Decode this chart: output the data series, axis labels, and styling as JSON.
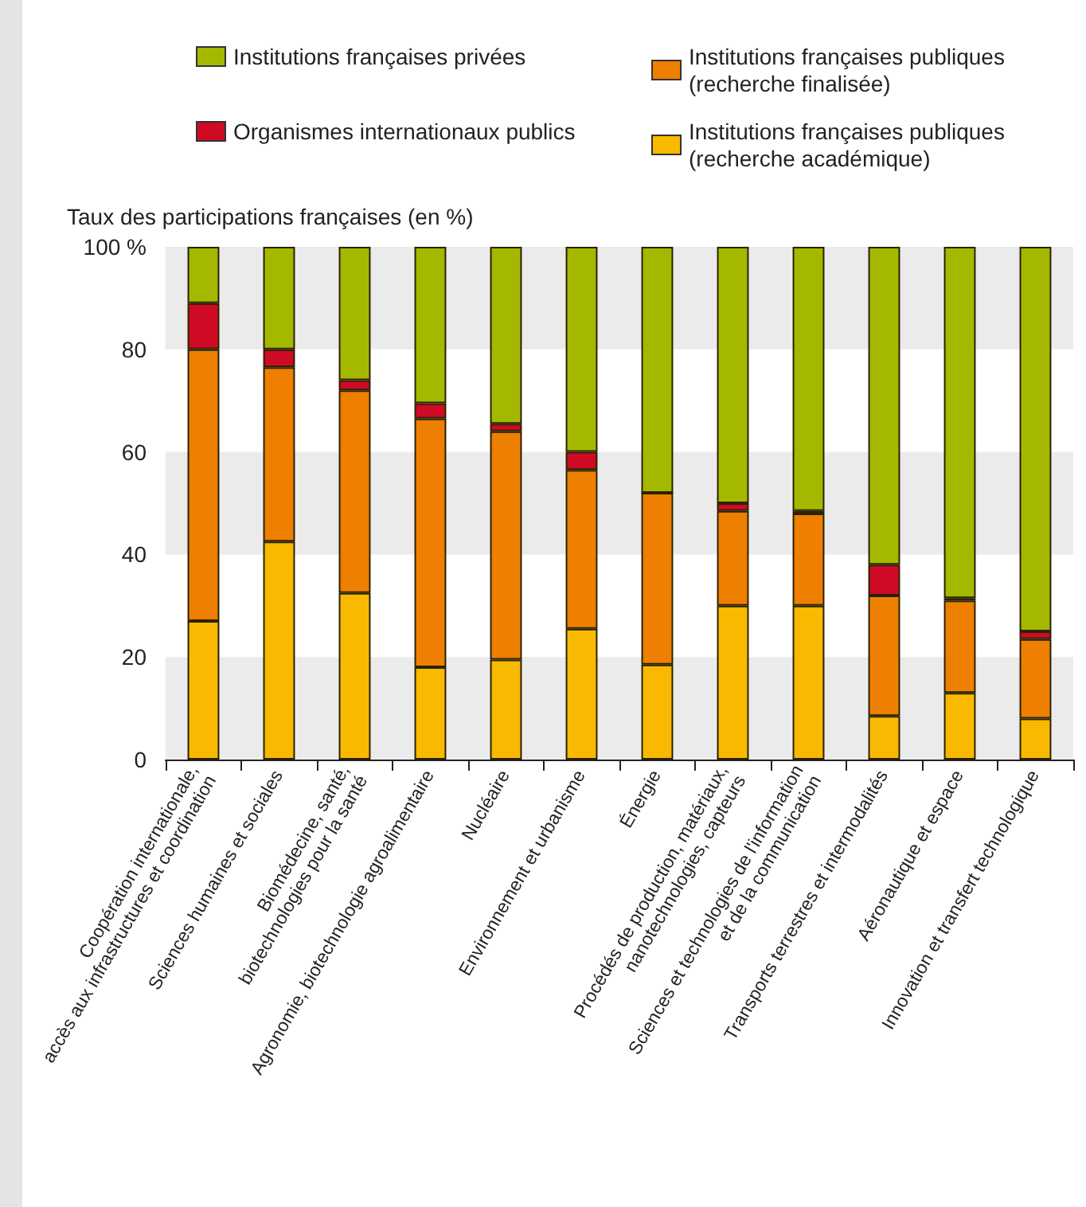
{
  "chart_data": {
    "type": "bar",
    "stacked": true,
    "ylabel": "Taux des participations françaises (en %)",
    "categories": [
      "Coopération internationale, accès aux infrastructures et coordination",
      "Sciences humaines et sociales",
      "Biomédecine, santé, biotechnologies pour la santé",
      "Agronomie, biotechnologie agroalimentaire",
      "Nucléaire",
      "Environnement et urbanisme",
      "Énergie",
      "Procédés de production, matériaux, nanotechnologies, capteurs",
      "Sciences et technologies de l'information et de la communication",
      "Transports terrestres et intermodalités",
      "Aéronautique et espace",
      "Innovation et transfert technologique"
    ],
    "series": [
      {
        "name": "Institutions françaises publiques (recherche académique)",
        "color": "#f9b900",
        "values": [
          27,
          42.5,
          32.5,
          18,
          19.5,
          25.5,
          18.5,
          30,
          30,
          8.5,
          13,
          8
        ]
      },
      {
        "name": "Institutions françaises publiques (recherche finalisée)",
        "color": "#ee7f00",
        "values": [
          53,
          34,
          39.5,
          48.5,
          44.5,
          31,
          33.5,
          18.5,
          18,
          23.5,
          18,
          15.5
        ]
      },
      {
        "name": "Organismes internationaux publics",
        "color": "#cf0a24",
        "values": [
          9,
          3.5,
          2,
          3,
          1.5,
          3.5,
          0,
          1.5,
          0.5,
          6,
          0.5,
          1.5
        ]
      },
      {
        "name": "Institutions françaises privées",
        "color": "#a5b800",
        "values": [
          11,
          20,
          26,
          30.5,
          34.5,
          40,
          48,
          50,
          51.5,
          62,
          68.5,
          75
        ]
      }
    ],
    "bands": [
      {
        "axis": "y",
        "from": 0,
        "to": 20,
        "color": "#ebebeb"
      },
      {
        "axis": "y",
        "from": 40,
        "to": 60,
        "color": "#ebebeb"
      },
      {
        "axis": "y",
        "from": 80,
        "to": 100,
        "color": "#ebebeb"
      }
    ],
    "ylim": [
      0,
      100
    ],
    "yticks": [
      0,
      20,
      40,
      60,
      80,
      {
        "value": 100,
        "label": "100 %"
      }
    ],
    "legend": "top"
  }
}
